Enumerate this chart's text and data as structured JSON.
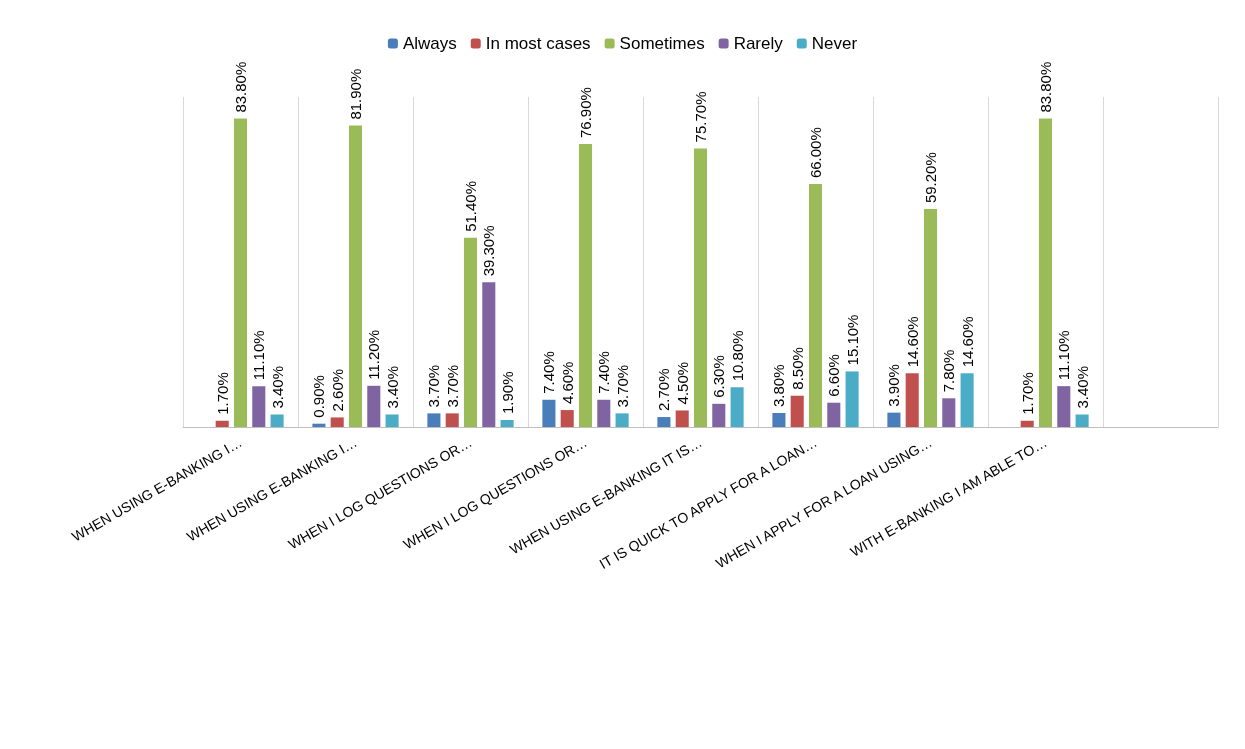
{
  "chart_data": {
    "type": "bar",
    "categories": [
      "WHEN USING E-BANKING I…",
      "WHEN USING E-BANKING I…",
      "WHEN I LOG QUESTIONS OR…",
      "WHEN I LOG QUESTIONS OR…",
      "WHEN USING E-BANKING IT IS…",
      "IT IS QUICK TO APPLY FOR A LOAN…",
      "WHEN I APPLY FOR A LOAN USING…",
      "WITH E-BANKING I AM ABLE TO…",
      null
    ],
    "series": [
      {
        "name": "Always",
        "color": "#4a7ebb",
        "values": [
          null,
          0.9,
          3.7,
          7.4,
          2.7,
          3.8,
          3.9,
          null,
          null
        ],
        "value_labels": [
          null,
          "0.90%",
          "3.70%",
          "7.40%",
          "2.70%",
          "3.80%",
          "3.90%",
          null,
          null
        ]
      },
      {
        "name": "In most cases",
        "color": "#c0504d",
        "values": [
          1.7,
          2.6,
          3.7,
          4.6,
          4.5,
          8.5,
          14.6,
          1.7,
          null
        ],
        "value_labels": [
          "1.70%",
          "2.60%",
          "3.70%",
          "4.60%",
          "4.50%",
          "8.50%",
          "14.60%",
          "1.70%",
          null
        ]
      },
      {
        "name": "Sometimes",
        "color": "#9bbb59",
        "values": [
          83.8,
          81.9,
          51.4,
          76.9,
          75.7,
          66.0,
          59.2,
          83.8,
          null
        ],
        "value_labels": [
          "83.80%",
          "81.90%",
          "51.40%",
          "76.90%",
          "75.70%",
          "66.00%",
          "59.20%",
          "83.80%",
          null
        ]
      },
      {
        "name": "Rarely",
        "color": "#8064a2",
        "values": [
          11.1,
          11.2,
          39.3,
          7.4,
          6.3,
          6.6,
          7.8,
          11.1,
          null
        ],
        "value_labels": [
          "11.10%",
          "11.20%",
          "39.30%",
          "7.40%",
          "6.30%",
          "6.60%",
          "7.80%",
          "11.10%",
          null
        ]
      },
      {
        "name": "Never",
        "color": "#4bacc6",
        "values": [
          3.4,
          3.4,
          1.9,
          3.7,
          10.8,
          15.1,
          14.6,
          3.4,
          null
        ],
        "value_labels": [
          "3.40%",
          "3.40%",
          "1.90%",
          "3.70%",
          "10.80%",
          "15.10%",
          "14.60%",
          "3.40%",
          null
        ]
      }
    ],
    "grid": "x",
    "legend": "top"
  }
}
